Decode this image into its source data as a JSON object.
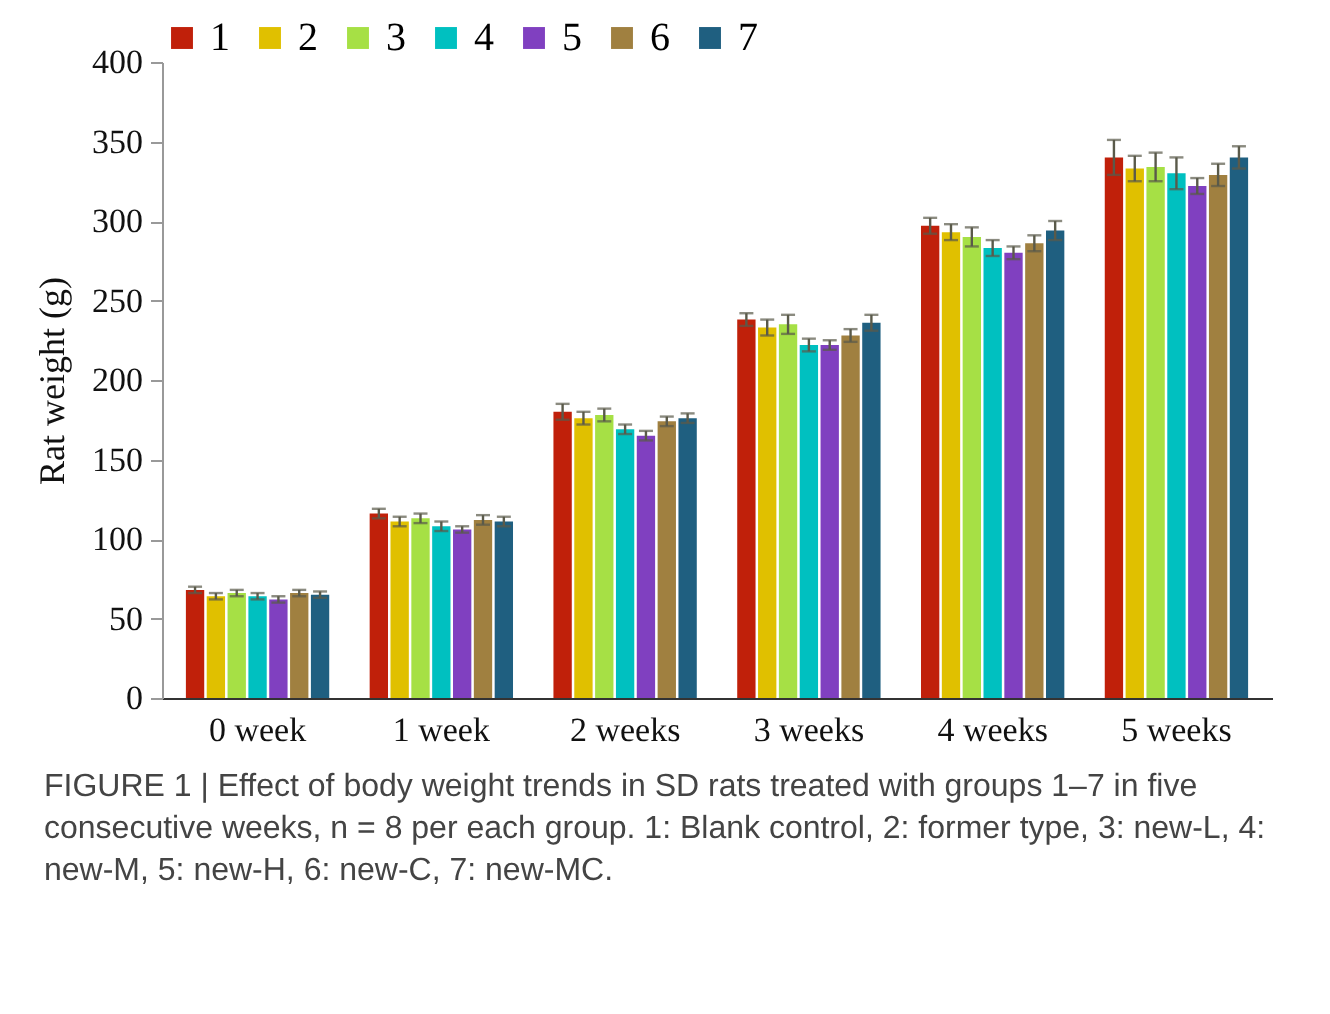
{
  "chart_data": {
    "type": "bar",
    "ylabel": "Rat weight (g)",
    "categories": [
      "0 week",
      "1 week",
      "2 weeks",
      "3 weeks",
      "4 weeks",
      "5 weeks"
    ],
    "ylim": [
      0,
      400
    ],
    "yticks": [
      0,
      50,
      100,
      150,
      200,
      250,
      300,
      350,
      400
    ],
    "grid": false,
    "legend": "top",
    "annotations": [
      "FIGURE 1 | Effect of body weight trends in SD rats treated with groups 1–7 in five consecutive weeks, n = 8 per each group. 1: Blank control, 2: former type, 3: new-L, 4: new-M, 5: new-H, 6: new-C, 7: new-MC."
    ],
    "series": [
      {
        "name": "1",
        "color": "#c0200a",
        "values": [
          68,
          116,
          180,
          238,
          297,
          340
        ],
        "errors": [
          2,
          3,
          5,
          4,
          5,
          11
        ]
      },
      {
        "name": "2",
        "color": "#e0c000",
        "values": [
          64,
          111,
          176,
          233,
          293,
          333
        ],
        "errors": [
          2,
          3,
          4,
          5,
          5,
          8
        ]
      },
      {
        "name": "3",
        "color": "#a6e045",
        "values": [
          66,
          113,
          178,
          235,
          290,
          334
        ],
        "errors": [
          2,
          3,
          4,
          6,
          6,
          9
        ]
      },
      {
        "name": "4",
        "color": "#00c0c0",
        "values": [
          64,
          108,
          169,
          222,
          283,
          330
        ],
        "errors": [
          2,
          3,
          3,
          4,
          5,
          10
        ]
      },
      {
        "name": "5",
        "color": "#8040c0",
        "values": [
          62,
          106,
          165,
          222,
          280,
          322
        ],
        "errors": [
          2,
          2,
          3,
          3,
          4,
          5
        ]
      },
      {
        "name": "6",
        "color": "#a08040",
        "values": [
          66,
          112,
          174,
          228,
          286,
          329
        ],
        "errors": [
          2,
          3,
          3,
          4,
          5,
          7
        ]
      },
      {
        "name": "7",
        "color": "#1f5f80",
        "values": [
          65,
          111,
          176,
          236,
          294,
          340
        ],
        "errors": [
          2,
          3,
          3,
          5,
          6,
          7
        ]
      }
    ]
  }
}
